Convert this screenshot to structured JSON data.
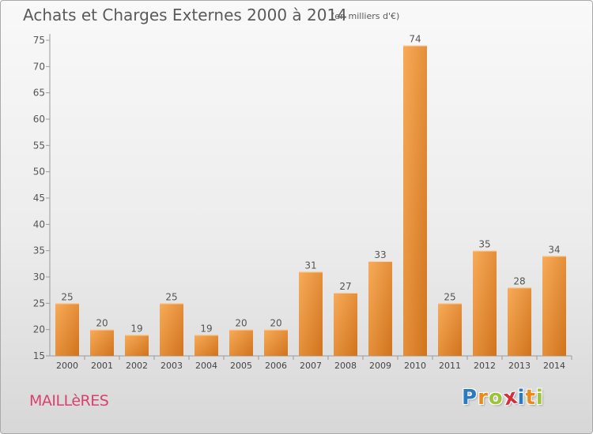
{
  "title": "Achats et Charges Externes 2000 à 2014",
  "subtitle": "(en milliers d'€)",
  "commune": "MAILLèRES",
  "logo": {
    "letters": [
      "P",
      "r",
      "o",
      "x",
      "i",
      "t",
      "i"
    ],
    "colors": [
      "#2a7ac0",
      "#e98b1c",
      "#9ec33b",
      "#d62f3c",
      "#2a7ac0",
      "#e98b1c",
      "#9ec33b"
    ]
  },
  "colors": {
    "bar_light": "#f8ab58",
    "bar_dark": "#d0731d",
    "title": "#5a5a5a",
    "commune": "#d9416e"
  },
  "chart_data": {
    "type": "bar",
    "title": "Achats et Charges Externes 2000 à 2014",
    "subtitle": "(en milliers d'€)",
    "categories": [
      "2000",
      "2001",
      "2002",
      "2003",
      "2004",
      "2005",
      "2006",
      "2007",
      "2008",
      "2009",
      "2010",
      "2011",
      "2012",
      "2013",
      "2014"
    ],
    "values": [
      25,
      20,
      19,
      25,
      19,
      20,
      20,
      31,
      27,
      33,
      74,
      25,
      35,
      28,
      34
    ],
    "ylim": [
      15,
      75
    ],
    "yticks": [
      15,
      20,
      25,
      30,
      35,
      40,
      45,
      50,
      55,
      60,
      65,
      70,
      75
    ],
    "grid": false,
    "data_labels": true
  }
}
